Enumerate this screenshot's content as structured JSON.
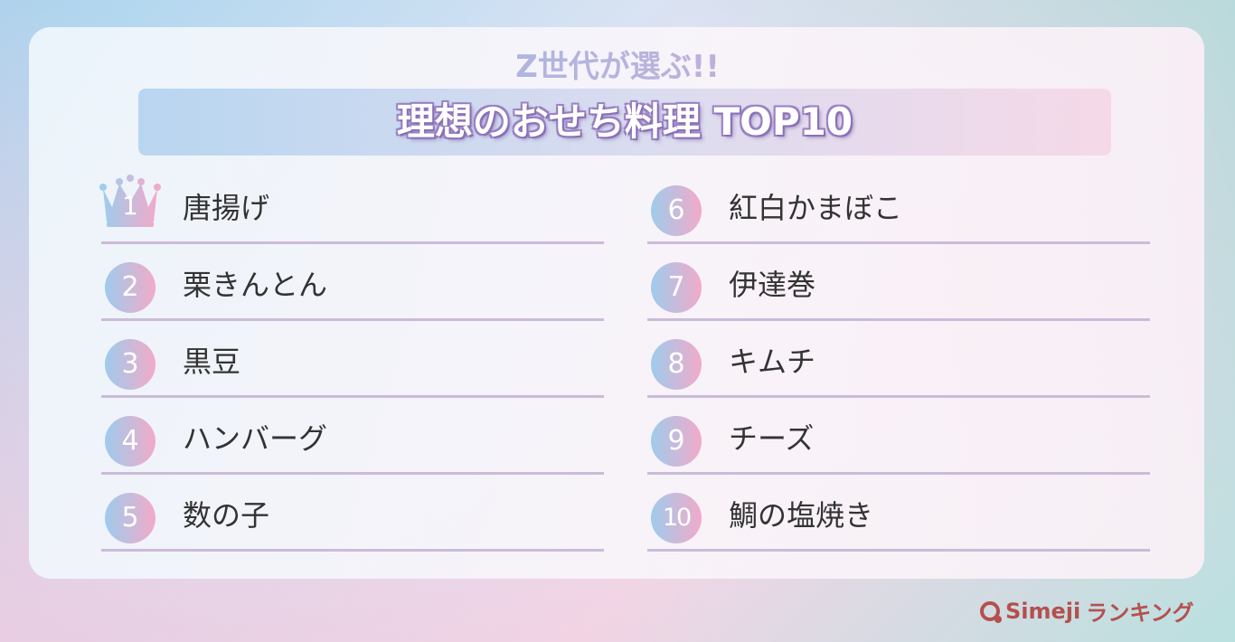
{
  "header": {
    "subtitle": "Z世代が選ぶ!!",
    "title": "理想のおせち料理 TOP10"
  },
  "ranking": [
    {
      "rank": "1",
      "item": "唐揚げ"
    },
    {
      "rank": "2",
      "item": "栗きんとん"
    },
    {
      "rank": "3",
      "item": "黒豆"
    },
    {
      "rank": "4",
      "item": "ハンバーグ"
    },
    {
      "rank": "5",
      "item": "数の子"
    },
    {
      "rank": "6",
      "item": "紅白かまぼこ"
    },
    {
      "rank": "7",
      "item": "伊達巻"
    },
    {
      "rank": "8",
      "item": "キムチ"
    },
    {
      "rank": "9",
      "item": "チーズ"
    },
    {
      "rank": "10",
      "item": "鯛の塩焼き"
    }
  ],
  "footer": {
    "brand": "Simeji",
    "suffix": "ランキング"
  },
  "colors": {
    "gradient_blue": "#9fcbec",
    "gradient_pink": "#f2aac9",
    "title_outline": "#8a70b8",
    "logo": "#b4504e",
    "divider": "#cbbbd9"
  }
}
